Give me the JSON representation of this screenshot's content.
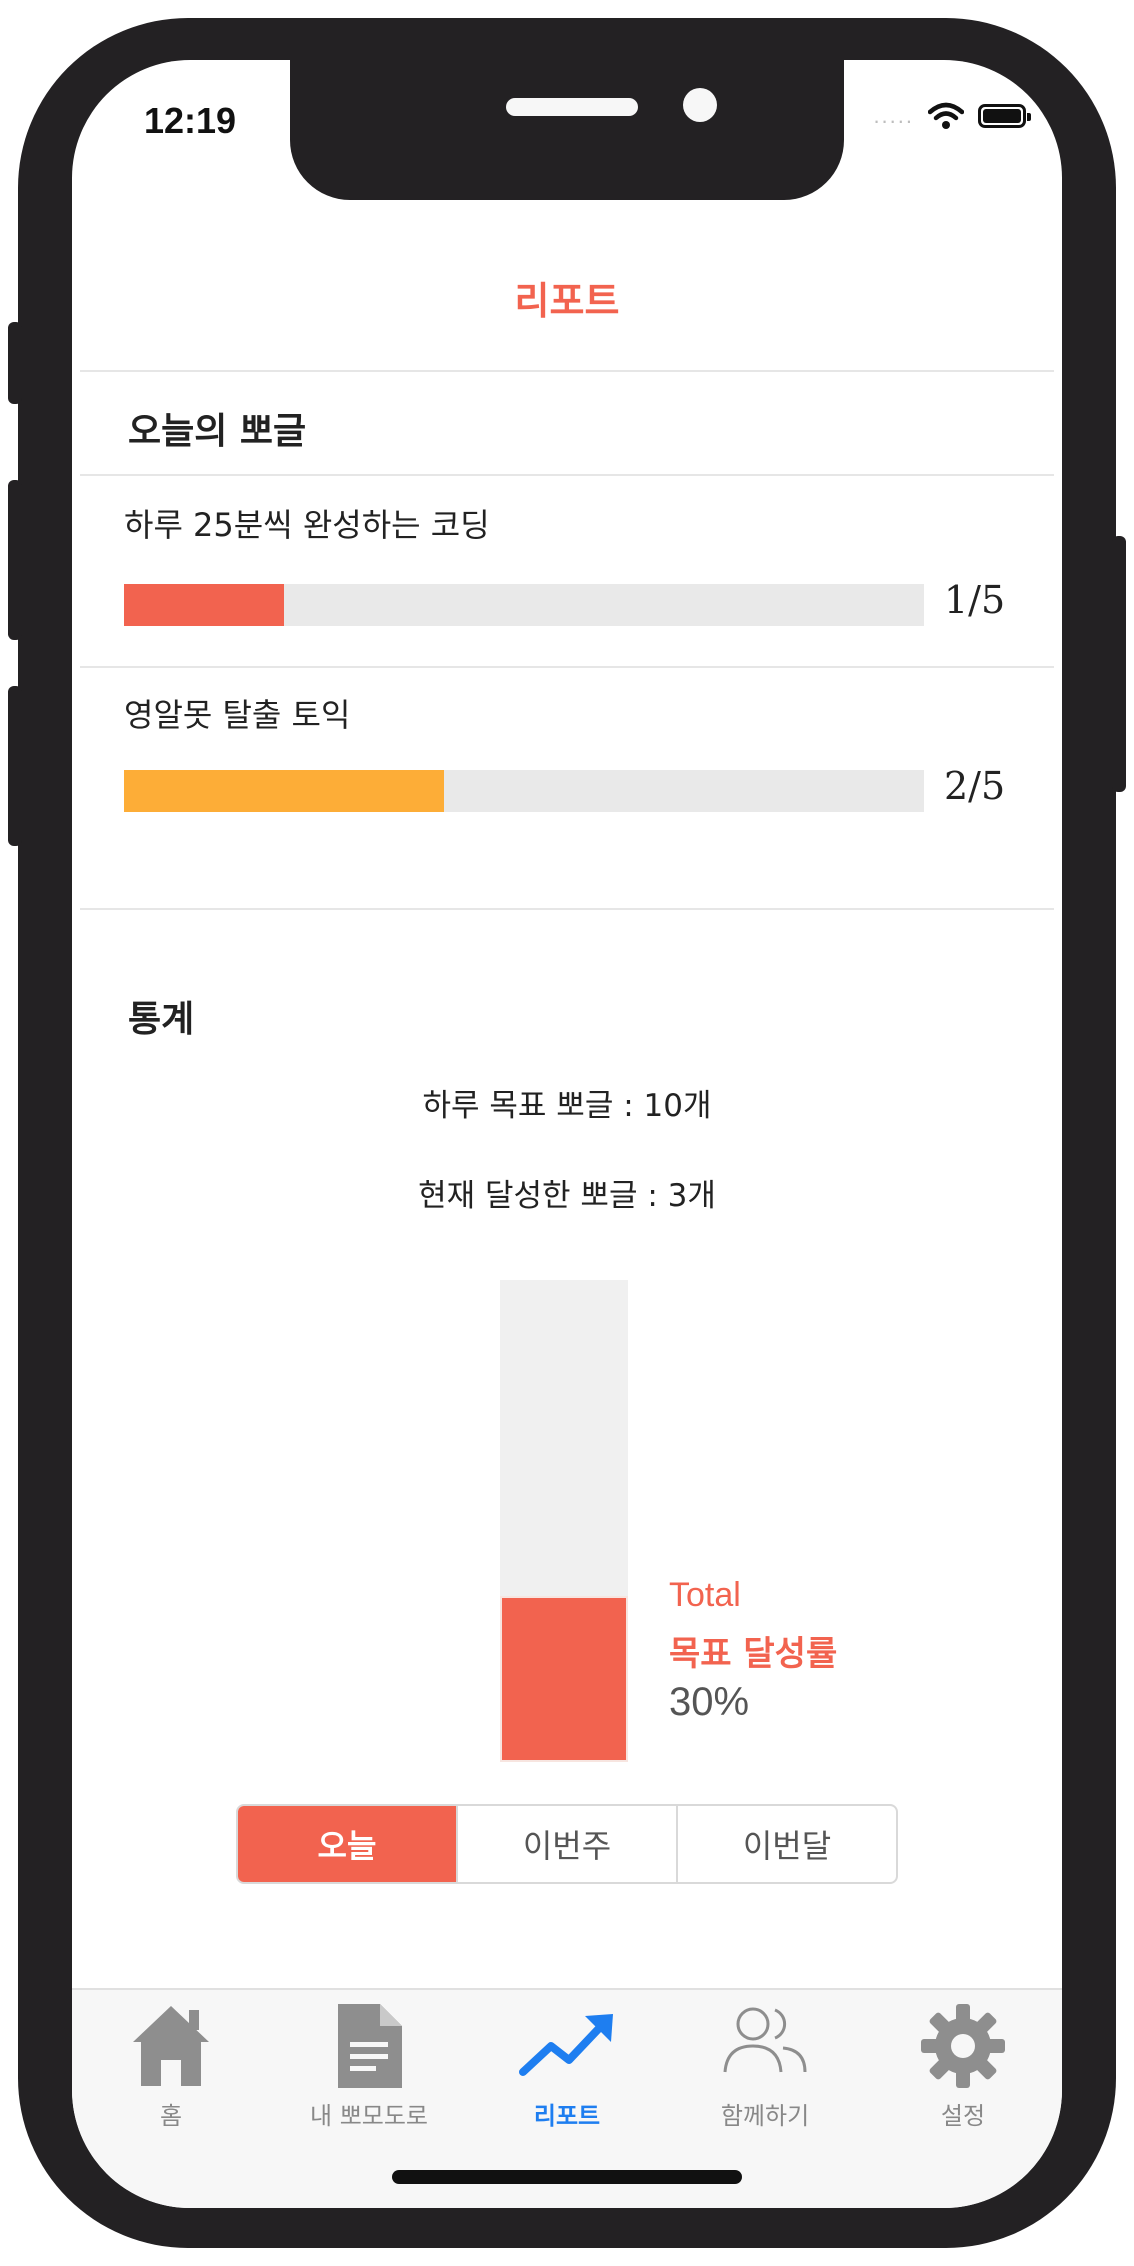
{
  "status": {
    "time": "12:19",
    "signal": "....."
  },
  "header": {
    "title": "리포트"
  },
  "today": {
    "section_title": "오늘의 뽀글",
    "goals": [
      {
        "name": "하루 25분씩 완성하는 코딩",
        "count": "1/5",
        "progress": 0.2,
        "color": "#f2634f"
      },
      {
        "name": "영알못 탈출 토익",
        "count": "2/5",
        "progress": 0.4,
        "color": "#fdad37"
      }
    ]
  },
  "stats": {
    "section_title": "통계",
    "daily_goal": "하루 목표 뽀글 : 10개",
    "achieved": "현재 달성한 뽀글 : 3개",
    "total_label_en": "Total",
    "total_label_ko": "목표 달성률",
    "total_percent": "30%",
    "achievement_rate": 0.3,
    "periods": [
      "오늘",
      "이번주",
      "이번달"
    ],
    "selected_period": "오늘"
  },
  "tabbar": {
    "items": [
      {
        "label": "홈",
        "icon": "home-icon"
      },
      {
        "label": "내 뽀모도로",
        "icon": "document-icon"
      },
      {
        "label": "리포트",
        "icon": "trending-up-icon"
      },
      {
        "label": "함께하기",
        "icon": "people-icon"
      },
      {
        "label": "설정",
        "icon": "gear-icon"
      }
    ],
    "active_index": 2,
    "active_color": "#1e7ef0"
  },
  "colors": {
    "accent": "#f2634f",
    "secondary": "#fdad37"
  }
}
